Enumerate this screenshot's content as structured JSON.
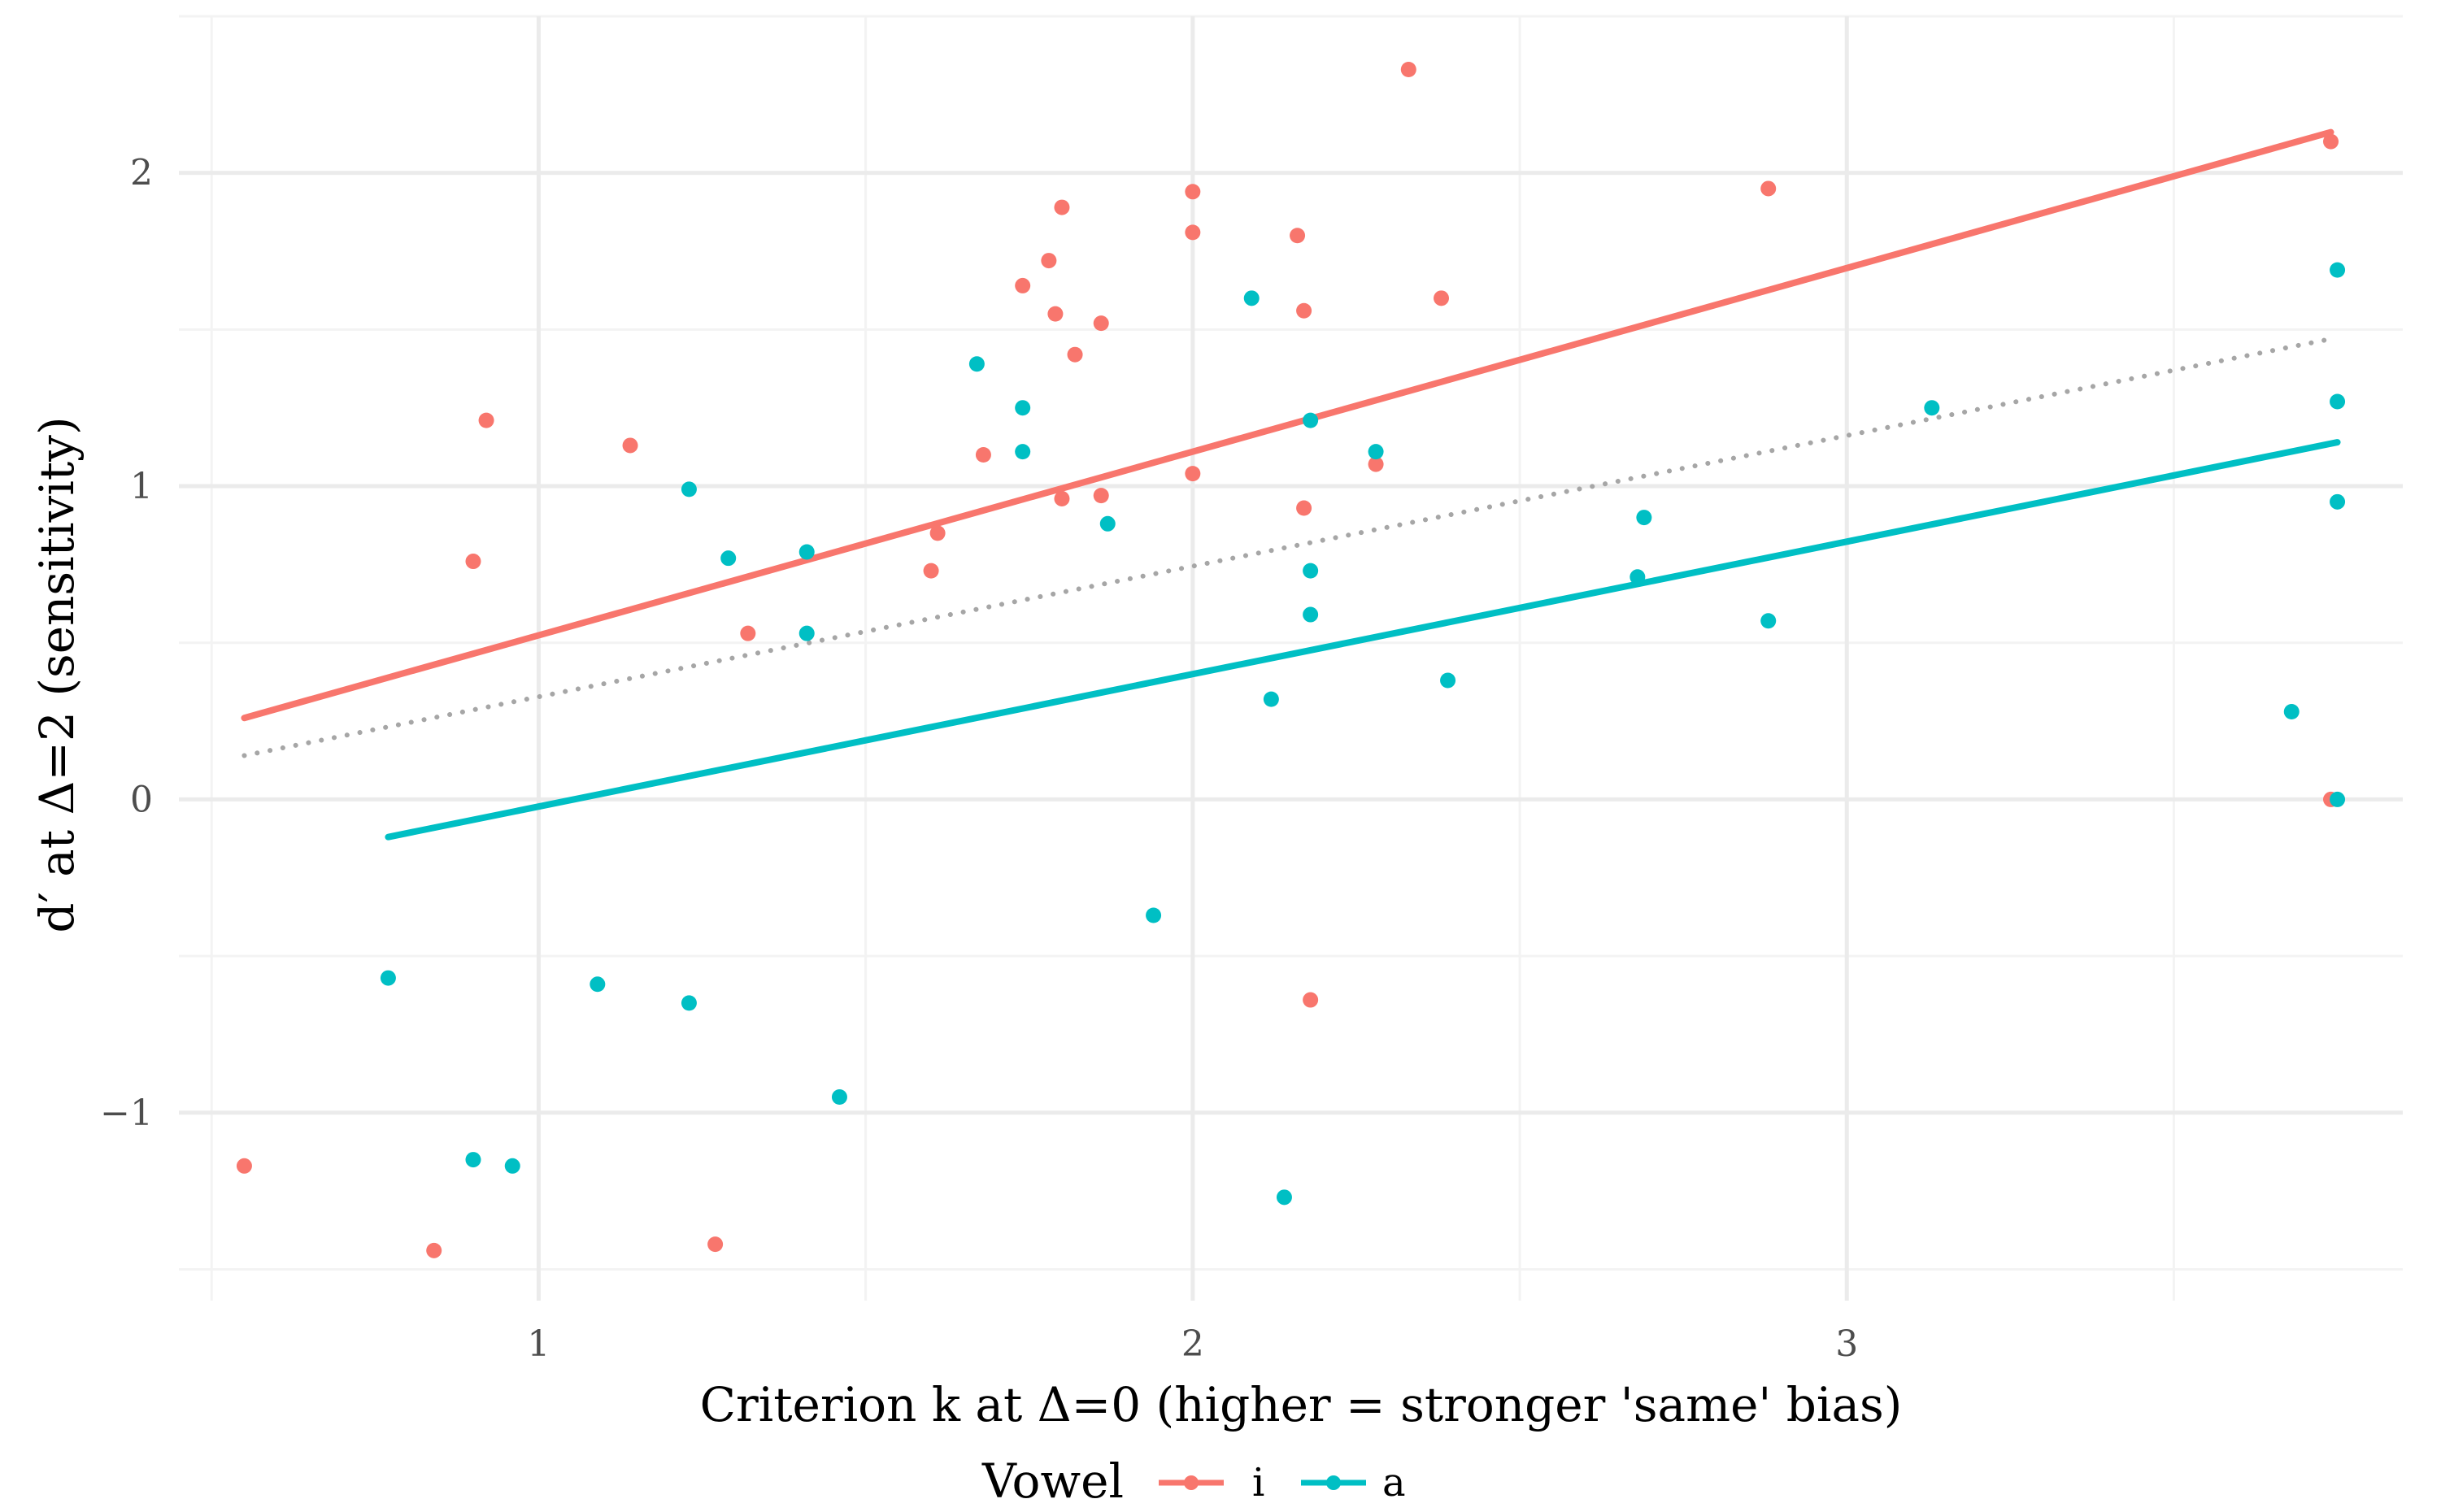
{
  "chart_data": {
    "type": "scatter",
    "title": "",
    "xlabel": "Criterion k at Δ=0 (higher = stronger 'same' bias)",
    "ylabel": "d′ at Δ=2 (sensitivity)",
    "xlim": [
      0.45,
      3.85
    ],
    "ylim": [
      -1.6,
      2.5
    ],
    "x_ticks": [
      1,
      2,
      3
    ],
    "x_tick_labels": [
      "1",
      "2",
      "3"
    ],
    "y_ticks": [
      -1,
      0,
      1,
      2
    ],
    "y_tick_labels": [
      "−1",
      "0",
      "1",
      "2"
    ],
    "grid": true,
    "legend": {
      "title": "Vowel",
      "position": "bottom",
      "entries": [
        {
          "label": "i",
          "color": "#F8766D"
        },
        {
          "label": "a",
          "color": "#00BFC4"
        }
      ]
    },
    "series": [
      {
        "name": "i",
        "color": "#F8766D",
        "x": [
          0.55,
          0.84,
          0.9,
          0.92,
          1.14,
          1.27,
          1.32,
          1.6,
          1.61,
          1.68,
          1.74,
          1.78,
          1.79,
          1.8,
          1.8,
          1.82,
          1.86,
          1.86,
          2.0,
          2.0,
          2.0,
          2.16,
          2.17,
          2.17,
          2.18,
          2.28,
          2.33,
          2.38,
          2.88,
          3.74,
          3.74
        ],
        "y": [
          -1.17,
          -1.44,
          0.76,
          1.21,
          1.13,
          -1.42,
          0.53,
          0.73,
          0.85,
          1.1,
          1.64,
          1.72,
          1.55,
          1.89,
          0.96,
          1.42,
          0.97,
          1.52,
          1.81,
          1.94,
          1.04,
          1.8,
          0.93,
          1.56,
          -0.64,
          1.07,
          2.33,
          1.6,
          1.95,
          2.1,
          0.0
        ]
      },
      {
        "name": "a",
        "color": "#00BFC4",
        "x": [
          0.77,
          0.9,
          0.96,
          1.09,
          1.23,
          1.23,
          1.29,
          1.41,
          1.41,
          1.46,
          1.67,
          1.74,
          1.74,
          1.87,
          1.94,
          2.09,
          2.12,
          2.14,
          2.18,
          2.18,
          2.18,
          2.28,
          2.39,
          2.68,
          2.69,
          2.88,
          3.13,
          3.68,
          3.75,
          3.75,
          3.75,
          3.75
        ],
        "y": [
          -0.57,
          -1.15,
          -1.17,
          -0.59,
          0.99,
          -0.65,
          0.77,
          0.79,
          0.53,
          -0.95,
          1.39,
          1.25,
          1.11,
          0.88,
          -0.37,
          1.6,
          0.32,
          -1.27,
          1.21,
          0.73,
          0.59,
          1.11,
          0.38,
          0.71,
          0.9,
          0.57,
          1.25,
          0.28,
          1.69,
          1.27,
          0.95,
          0.0
        ]
      }
    ],
    "fit_lines": [
      {
        "name": "i",
        "color": "#F8766D",
        "style": "solid",
        "x": [
          0.55,
          3.74
        ],
        "y": [
          0.26,
          2.13
        ]
      },
      {
        "name": "a",
        "color": "#00BFC4",
        "style": "solid",
        "x": [
          0.77,
          3.75
        ],
        "y": [
          -0.12,
          1.14
        ]
      },
      {
        "name": "overall",
        "color": "#a6a6a6",
        "style": "dotted",
        "x": [
          0.55,
          3.74
        ],
        "y": [
          0.14,
          1.47
        ]
      }
    ]
  }
}
